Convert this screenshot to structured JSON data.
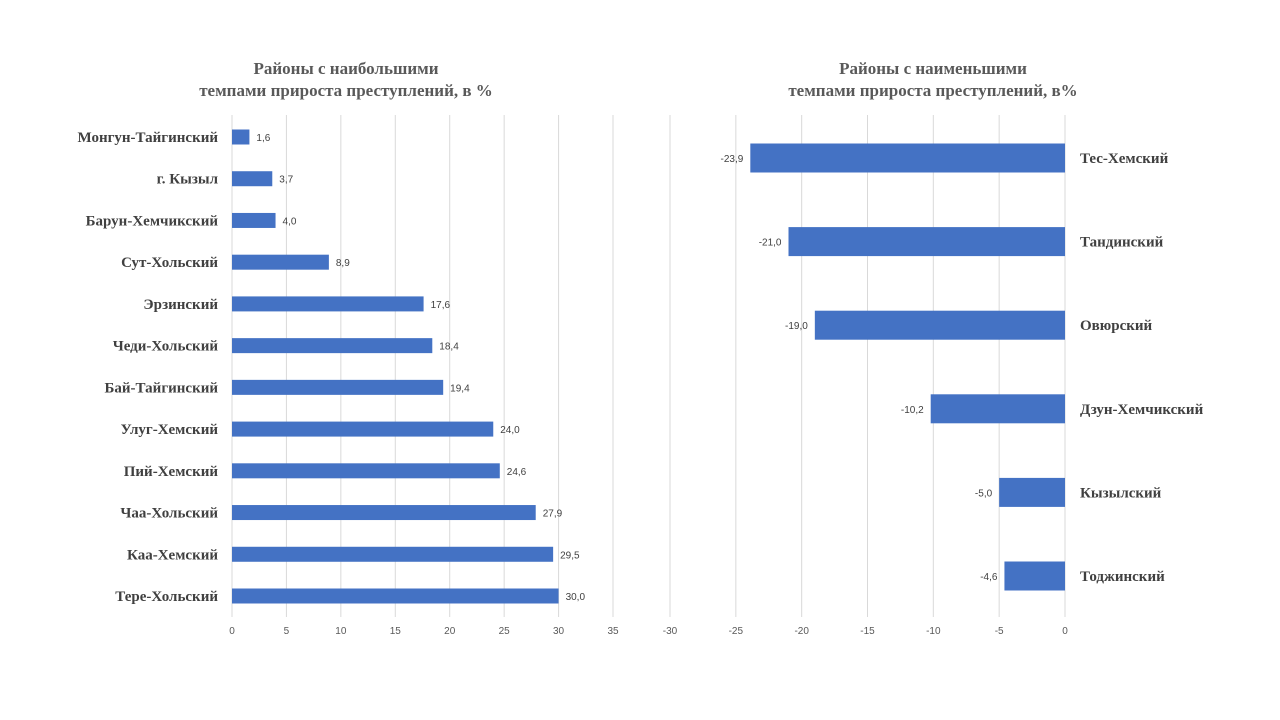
{
  "chart_data": [
    {
      "type": "bar",
      "orientation": "horizontal",
      "title": "Районы с наибольшими темпами прироста преступлений, в %",
      "title_lines": [
        "Районы с наибольшими",
        "темпами прироста преступлений, в %"
      ],
      "categories": [
        "Монгун-Тайгинский",
        "г. Кызыл",
        "Барун-Хемчикский",
        "Сут-Хольский",
        "Эрзинский",
        "Чеди-Хольский",
        "Бай-Тайгинский",
        "Улуг-Хемский",
        "Пий-Хемский",
        "Чаа-Хольский",
        "Каа-Хемский",
        "Тере-Хольский"
      ],
      "values": [
        1.6,
        3.7,
        4.0,
        8.9,
        17.6,
        18.4,
        19.4,
        24.0,
        24.6,
        27.9,
        29.5,
        30.0
      ],
      "data_labels": [
        "1,6",
        "3,7",
        "4,0",
        "8,9",
        "17,6",
        "18,4",
        "19,4",
        "24,0",
        "24,6",
        "27,9",
        "29,5",
        "30,0"
      ],
      "xlim": [
        0,
        35
      ],
      "ticks": [
        "0",
        "5",
        "10",
        "15",
        "20",
        "25",
        "30",
        "35"
      ],
      "grid": true,
      "legend": "none",
      "color": "#4472c4"
    },
    {
      "type": "bar",
      "orientation": "horizontal",
      "title": "Районы с наименьшими темпами прироста преступлений, в%",
      "title_lines": [
        "Районы с наименьшими",
        "темпами прироста преступлений, в%"
      ],
      "categories": [
        "Тес-Хемский",
        "Тандинский",
        "Овюрский",
        "Дзун-Хемчикский",
        "Кызылский",
        "Тоджинский"
      ],
      "values": [
        -23.9,
        -21.0,
        -19.0,
        -10.2,
        -5.0,
        -4.6
      ],
      "data_labels": [
        "-23,9",
        "-21,0",
        "-19,0",
        "-10,2",
        "-5,0",
        "-4,6"
      ],
      "xlim": [
        -30,
        0
      ],
      "ticks": [
        "-30",
        "-25",
        "-20",
        "-15",
        "-10",
        "-5",
        "0"
      ],
      "grid": true,
      "legend": "none",
      "color": "#4472c4"
    }
  ]
}
